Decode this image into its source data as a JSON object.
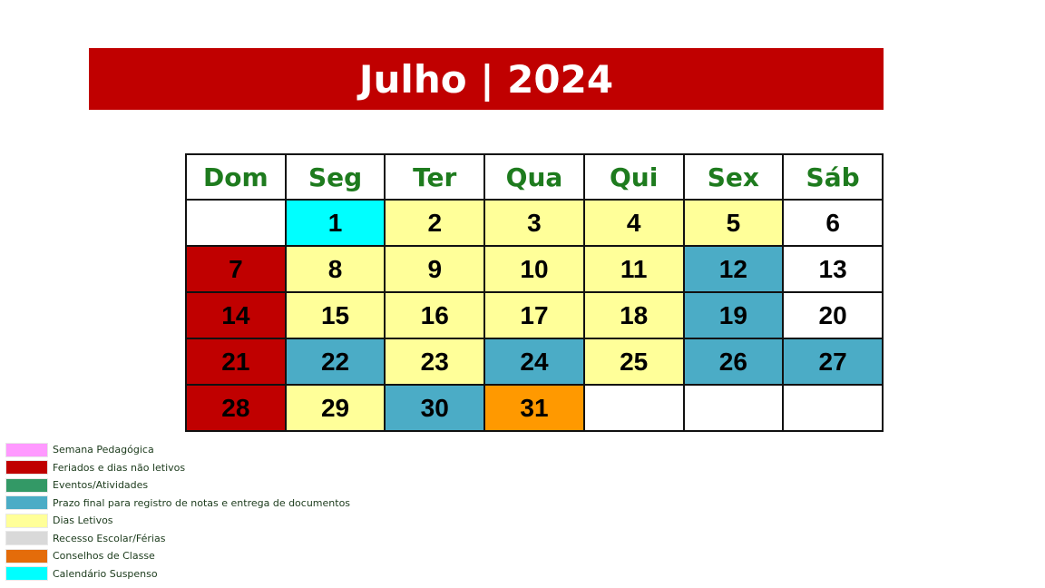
{
  "title": "Julho | 2024",
  "colors": {
    "title_bg": "#c00000",
    "header_text": "#1e7b1e",
    "holiday": "#c00000",
    "deadline": "#4bacc6",
    "school_day": "#ffff99",
    "council": "#ff9900",
    "suspended": "#00ffff",
    "weekend_plain": "#ffffff"
  },
  "calendar": {
    "weekdays": [
      "Dom",
      "Seg",
      "Ter",
      "Qua",
      "Qui",
      "Sex",
      "Sáb"
    ],
    "weeks": [
      [
        {
          "day": "",
          "type": "empty"
        },
        {
          "day": "1",
          "type": "suspended"
        },
        {
          "day": "2",
          "type": "school_day"
        },
        {
          "day": "3",
          "type": "school_day"
        },
        {
          "day": "4",
          "type": "school_day"
        },
        {
          "day": "5",
          "type": "school_day"
        },
        {
          "day": "6",
          "type": "plain"
        }
      ],
      [
        {
          "day": "7",
          "type": "holiday"
        },
        {
          "day": "8",
          "type": "school_day"
        },
        {
          "day": "9",
          "type": "school_day"
        },
        {
          "day": "10",
          "type": "school_day"
        },
        {
          "day": "11",
          "type": "school_day"
        },
        {
          "day": "12",
          "type": "deadline"
        },
        {
          "day": "13",
          "type": "plain"
        }
      ],
      [
        {
          "day": "14",
          "type": "holiday"
        },
        {
          "day": "15",
          "type": "school_day"
        },
        {
          "day": "16",
          "type": "school_day"
        },
        {
          "day": "17",
          "type": "school_day"
        },
        {
          "day": "18",
          "type": "school_day"
        },
        {
          "day": "19",
          "type": "deadline"
        },
        {
          "day": "20",
          "type": "plain"
        }
      ],
      [
        {
          "day": "21",
          "type": "holiday"
        },
        {
          "day": "22",
          "type": "deadline"
        },
        {
          "day": "23",
          "type": "school_day"
        },
        {
          "day": "24",
          "type": "deadline"
        },
        {
          "day": "25",
          "type": "school_day"
        },
        {
          "day": "26",
          "type": "deadline"
        },
        {
          "day": "27",
          "type": "deadline"
        }
      ],
      [
        {
          "day": "28",
          "type": "holiday"
        },
        {
          "day": "29",
          "type": "school_day"
        },
        {
          "day": "30",
          "type": "deadline"
        },
        {
          "day": "31",
          "type": "council"
        },
        {
          "day": "",
          "type": "empty"
        },
        {
          "day": "",
          "type": "empty"
        },
        {
          "day": "",
          "type": "empty"
        }
      ]
    ]
  },
  "legend": [
    {
      "label": "Semana Pedagógica",
      "color": "#ff99ff"
    },
    {
      "label": "Feriados e dias não letivos",
      "color": "#c00000"
    },
    {
      "label": "Eventos/Atividades",
      "color": "#339966"
    },
    {
      "label": "Prazo final para registro de notas e entrega de documentos",
      "color": "#4bacc6"
    },
    {
      "label": "Dias Letivos",
      "color": "#ffff99"
    },
    {
      "label": "Recesso Escolar/Férias",
      "color": "#d9d9d9"
    },
    {
      "label": "Conselhos de Classe",
      "color": "#e46c0a"
    },
    {
      "label": "Calendário Suspenso",
      "color": "#00ffff"
    }
  ]
}
